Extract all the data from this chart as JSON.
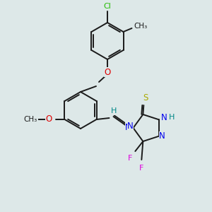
{
  "bg_color": "#dde8e8",
  "bond_color": "#1a1a1a",
  "colors": {
    "N": "#0000ee",
    "O": "#dd0000",
    "S": "#aaaa00",
    "F": "#dd00dd",
    "Cl": "#22bb00",
    "C": "#1a1a1a",
    "H": "#008888"
  },
  "figsize": [
    3.0,
    3.0
  ],
  "dpi": 100
}
